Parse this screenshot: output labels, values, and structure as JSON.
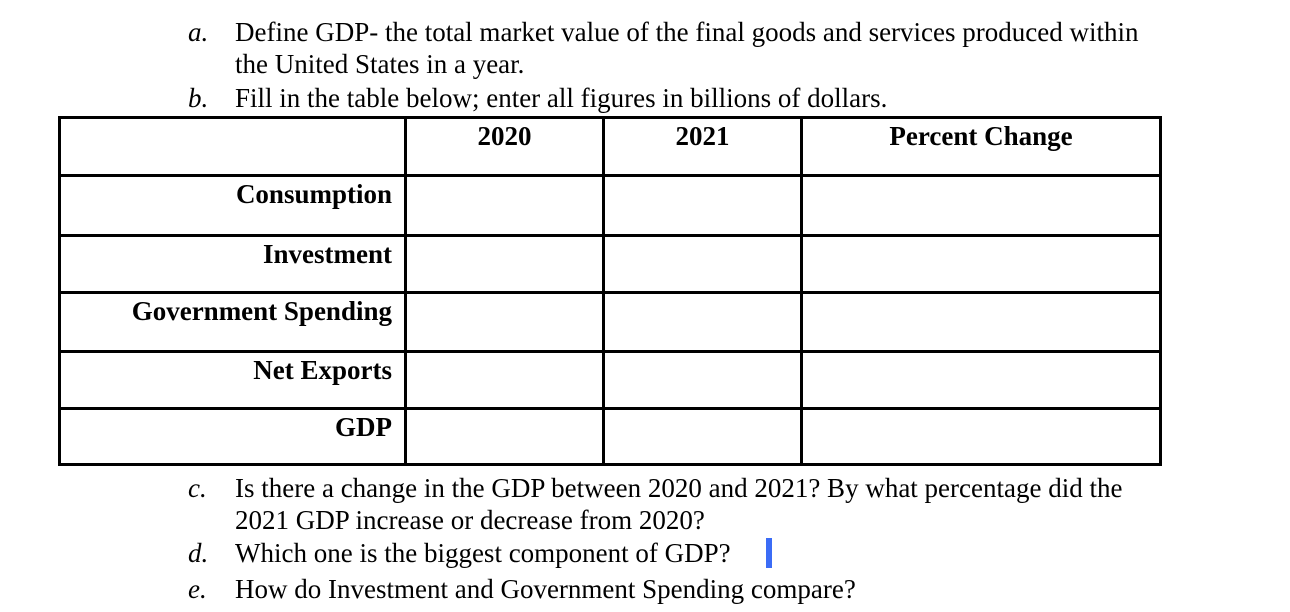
{
  "questions": [
    {
      "marker": "a.",
      "lines": [
        "Define GDP- the total market value of the final goods and services produced within",
        "the United States in a year."
      ]
    },
    {
      "marker": "b.",
      "lines": [
        "Fill in the table below; enter all figures in billions of dollars."
      ]
    },
    {
      "marker": "c.",
      "lines": [
        "Is there a change in the GDP between 2020 and 2021? By what percentage did the",
        "2021 GDP increase or decrease from 2020?"
      ]
    },
    {
      "marker": "d.",
      "lines": [
        "Which one is the biggest component of GDP?"
      ]
    },
    {
      "marker": "e.",
      "lines": [
        "How do Investment and Government Spending compare?"
      ]
    }
  ],
  "table": {
    "headers": [
      "",
      "2020",
      "2021",
      "Percent Change"
    ],
    "rows": [
      {
        "label": "Consumption",
        "cells": [
          "",
          "",
          ""
        ]
      },
      {
        "label": "Investment",
        "cells": [
          "",
          "",
          ""
        ]
      },
      {
        "label": "Government Spending",
        "cells": [
          "",
          "",
          ""
        ]
      },
      {
        "label": "Net Exports",
        "cells": [
          "",
          "",
          ""
        ]
      },
      {
        "label": "GDP",
        "cells": [
          "",
          "",
          ""
        ]
      }
    ]
  },
  "colors": {
    "text": "#000000",
    "cursor": "#3b6cf6",
    "border": "#000000"
  }
}
